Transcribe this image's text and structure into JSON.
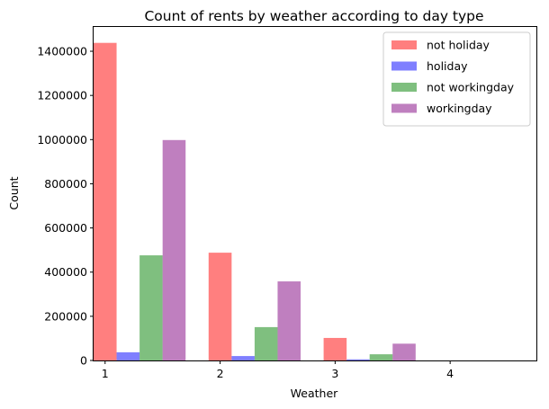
{
  "chart_data": {
    "type": "bar",
    "title": "Count of rents by weather according to day type",
    "xlabel": "Weather",
    "ylabel": "Count",
    "categories": [
      "1",
      "2",
      "3",
      "4"
    ],
    "xlim": [
      0.9,
      4.75
    ],
    "ylim": [
      0,
      1510000
    ],
    "yticks": [
      0,
      200000,
      400000,
      600000,
      800000,
      1000000,
      1200000,
      1400000
    ],
    "ytick_labels": [
      "0",
      "200000",
      "400000",
      "600000",
      "800000",
      "1000000",
      "1200000",
      "1400000"
    ],
    "xticks": [
      1,
      2,
      3,
      4
    ],
    "xtick_labels": [
      "1",
      "2",
      "3",
      "4"
    ],
    "grid": false,
    "legend_position": "top-right",
    "series": [
      {
        "name": "not holiday",
        "color": "#ff0000",
        "alpha": 0.5,
        "values": [
          1438000,
          488000,
          102000,
          0
        ]
      },
      {
        "name": "holiday",
        "color": "#0000ff",
        "alpha": 0.5,
        "values": [
          37000,
          20000,
          5000,
          0
        ]
      },
      {
        "name": "not workingday",
        "color": "#008000",
        "alpha": 0.5,
        "values": [
          476000,
          151000,
          28000,
          0
        ]
      },
      {
        "name": "workingday",
        "color": "#800080",
        "alpha": 0.5,
        "values": [
          998000,
          358000,
          76000,
          0
        ]
      }
    ]
  }
}
